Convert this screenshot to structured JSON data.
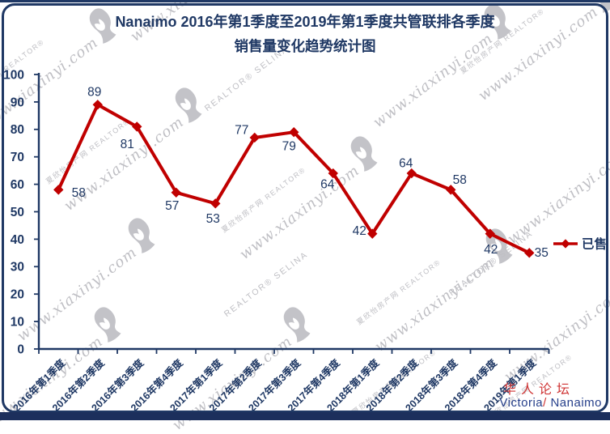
{
  "title": {
    "line1": "Nanaimo 2016年第1季度至2019年第1季度共管联排各季度",
    "line2": "销售量变化趋势统计图"
  },
  "chart_data": {
    "type": "line",
    "categories": [
      "2016年第1季度",
      "2016年第2季度",
      "2016年第3季度",
      "2016年第4季度",
      "2017年第1季度",
      "2017年第2季度",
      "2017年第3季度",
      "2017年第4季度",
      "2018年第1季度",
      "2018年第2季度",
      "2018年第3季度",
      "2018年第4季度",
      "2019年第1季度"
    ],
    "series": [
      {
        "name": "已售",
        "color": "#c00000",
        "marker": "diamond",
        "values": [
          58,
          89,
          81,
          57,
          53,
          77,
          79,
          64,
          42,
          64,
          58,
          42,
          35
        ]
      }
    ],
    "xlabel": "",
    "ylabel": "",
    "ylim": [
      0,
      100
    ],
    "ytick_step": 10,
    "grid": false,
    "legend_position": "right-middle",
    "data_labels": true
  },
  "legend": {
    "items": [
      {
        "label": "已售",
        "color": "#c00000",
        "marker": "diamond-line"
      }
    ]
  },
  "watermark": {
    "site": "夏欣怡房产网 REALTOR®",
    "url": "www.xiaxinyi.com",
    "agent": "REALTOR® SELINA"
  },
  "footer": {
    "forum": "华人论坛",
    "location_name1": "Victoria",
    "location_slash": "/",
    "location_name2": " Nanaimo"
  },
  "colors": {
    "navy": "#1f3864",
    "line_red": "#c00000",
    "footer_red": "#cf3434",
    "footer_blue": "#27408b",
    "watermark_gray": "#bfbfc4",
    "border_navy": "#1f3864"
  }
}
